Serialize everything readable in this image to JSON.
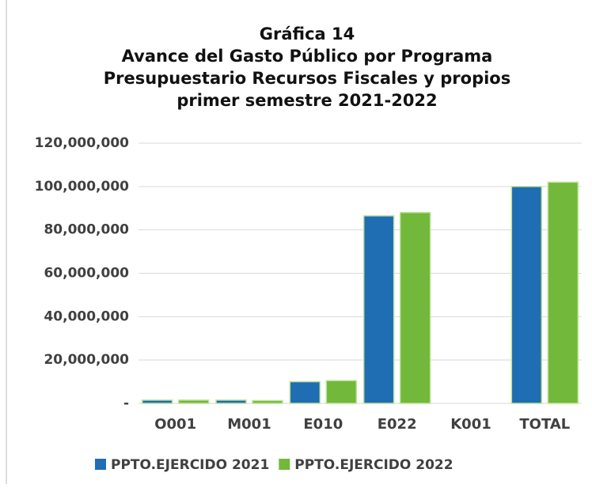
{
  "chart_data": {
    "type": "bar",
    "title": [
      "Gráfica 14",
      "Avance del Gasto Público por Programa",
      "Presupuestario Recursos Fiscales y propios",
      "primer semestre 2021-2022"
    ],
    "categories": [
      "O001",
      "M001",
      "E010",
      "E022",
      "K001",
      "TOTAL"
    ],
    "series": [
      {
        "name": "PPTO.EJERCIDO 2021",
        "color": "#1f6db3",
        "values": [
          1500000,
          1500000,
          10000000,
          86500000,
          0,
          100000000
        ]
      },
      {
        "name": "PPTO.EJERCIDO 2022",
        "color": "#72b83a",
        "values": [
          1500000,
          1300000,
          10500000,
          88000000,
          0,
          102000000
        ]
      }
    ],
    "ylim": [
      0,
      120000000
    ],
    "yticks": [
      {
        "value": 0,
        "label": "-"
      },
      {
        "value": 20000000,
        "label": "20,000,000"
      },
      {
        "value": 40000000,
        "label": "40,000,000"
      },
      {
        "value": 60000000,
        "label": "60,000,000"
      },
      {
        "value": 80000000,
        "label": "80,000,000"
      },
      {
        "value": 100000000,
        "label": "100,000,000"
      },
      {
        "value": 120000000,
        "label": "120,000,000"
      }
    ],
    "grid": true,
    "legend": "bottom"
  }
}
